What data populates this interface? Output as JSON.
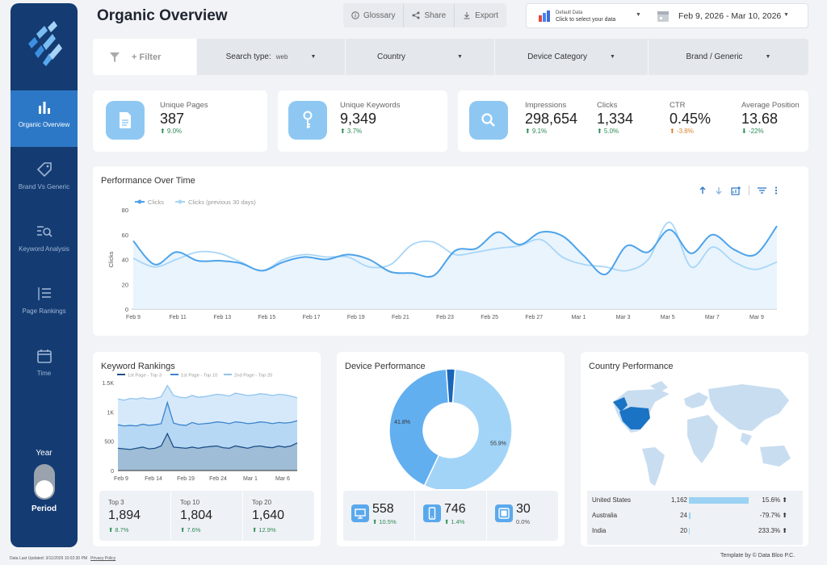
{
  "sidebar": {
    "items": [
      {
        "label": "Organic Overview",
        "icon": "bar-chart-icon"
      },
      {
        "label": "Brand Vs Generic",
        "icon": "tag-icon"
      },
      {
        "label": "Keyword Analysis",
        "icon": "search-list-icon"
      },
      {
        "label": "Page Rankings",
        "icon": "ranked-list-icon"
      },
      {
        "label": "Time",
        "icon": "calendar-icon"
      }
    ],
    "year_label": "Year",
    "period_label": "Period"
  },
  "header": {
    "title": "Organic Overview",
    "glossary": "Glossary",
    "share": "Share",
    "export": "Export",
    "data_source_name": "Default Data",
    "data_source_hint": "Click to select your data",
    "date_range": "Feb 9, 2026 - Mar 10, 2026"
  },
  "filters": {
    "add_filter": "+ Filter",
    "search_type_label": "Search type:",
    "search_type_value": "web",
    "country": "Country",
    "device_category": "Device Category",
    "brand_generic": "Brand / Generic"
  },
  "kpis": {
    "unique_pages": {
      "label": "Unique Pages",
      "value": "387",
      "delta": "⬆ 9.0%"
    },
    "unique_keywords": {
      "label": "Unique Keywords",
      "value": "9,349",
      "delta": "⬆ 3.7%"
    },
    "impressions": {
      "label": "Impressions",
      "value": "298,654",
      "delta": "⬆ 9.1%"
    },
    "clicks": {
      "label": "Clicks",
      "value": "1,334",
      "delta": "⬆ 5.0%"
    },
    "ctr": {
      "label": "CTR",
      "value": "0.45%",
      "delta": "⬆ -3.8%"
    },
    "avg_position": {
      "label": "Average Position",
      "value": "13.68",
      "delta": "⬇ -22%"
    }
  },
  "performance": {
    "title": "Performance Over Time"
  },
  "keyword_rankings": {
    "title": "Keyword Rankings",
    "top3_label": "Top 3",
    "top3_value": "1,894",
    "top3_delta": "⬆ 8.7%",
    "top10_label": "Top 10",
    "top10_value": "1,804",
    "top10_delta": "⬆ 7.6%",
    "top20_label": "Top 20",
    "top20_value": "1,640",
    "top20_delta": "⬆ 12.9%"
  },
  "device": {
    "title": "Device Performance",
    "desktop_value": "558",
    "desktop_delta": "⬆ 10.5%",
    "mobile_value": "746",
    "mobile_delta": "⬆ 1.4%",
    "tablet_value": "30",
    "tablet_delta": "0.0%"
  },
  "country": {
    "title": "Country Performance",
    "rows": [
      {
        "name": "United States",
        "value": "1,162",
        "change": "15.6% ⬆",
        "share": 0.93
      },
      {
        "name": "Australia",
        "value": "24",
        "change": "-79.7% ⬆",
        "share": 0.02
      },
      {
        "name": "India",
        "value": "20",
        "change": "233.3% ⬆",
        "share": 0.016
      }
    ]
  },
  "footer": {
    "updated": "Data Last Updated: 3/11/2026 10:02:30 PM",
    "privacy": "Privacy Policy",
    "credit": "Template by © Data Bloo P.C."
  },
  "colors": {
    "sidebar": "#143c73",
    "active_nav": "#2d78c6",
    "accent": "#2d8ce0",
    "light_accent": "#9bd2f3",
    "positive": "#2e8b57",
    "negative": "#d9822b"
  },
  "chart_data": [
    {
      "type": "line",
      "title": "Performance Over Time",
      "xlabel": "",
      "ylabel": "Clicks",
      "ylim": [
        0,
        80
      ],
      "y_ticks": [
        0,
        20,
        40,
        60,
        80
      ],
      "x_ticks": [
        "Feb 9",
        "Feb 11",
        "Feb 13",
        "Feb 15",
        "Feb 17",
        "Feb 19",
        "Feb 21",
        "Feb 23",
        "Feb 25",
        "Feb 27",
        "Mar 1",
        "Mar 3",
        "Mar 5",
        "Mar 7",
        "Mar 9"
      ],
      "legend": "top-left",
      "series": [
        {
          "name": "Clicks",
          "values": [
            55,
            36,
            46,
            39,
            39,
            37,
            31,
            38,
            42,
            40,
            44,
            40,
            30,
            29,
            27,
            47,
            49,
            62,
            52,
            62,
            59,
            43,
            28,
            51,
            46,
            64,
            45,
            60,
            48,
            44,
            67
          ]
        },
        {
          "name": "Clicks (previous 30 days)",
          "values": [
            41,
            34,
            40,
            46,
            45,
            38,
            31,
            40,
            44,
            42,
            42,
            34,
            36,
            52,
            54,
            44,
            46,
            49,
            51,
            56,
            42,
            36,
            34,
            31,
            40,
            70,
            34,
            50,
            38,
            32,
            38
          ]
        }
      ]
    },
    {
      "type": "area",
      "title": "Keyword Rankings",
      "ylim": [
        0,
        1500
      ],
      "y_ticks": [
        "0",
        "500",
        "1K",
        "1.5K"
      ],
      "x_ticks": [
        "Feb 9",
        "Feb 14",
        "Feb 19",
        "Feb 24",
        "Mar 1",
        "Mar 6"
      ],
      "legend": "top",
      "series": [
        {
          "name": "1st Page - Top 3",
          "values": [
            380,
            370,
            360,
            380,
            400,
            370,
            380,
            420,
            630,
            400,
            390,
            380,
            400,
            380,
            400,
            410,
            420,
            390,
            380,
            420,
            400,
            380,
            410,
            420,
            400,
            390,
            420,
            400,
            420,
            470
          ]
        },
        {
          "name": "1st Page - Top 10",
          "values": [
            780,
            760,
            770,
            760,
            790,
            770,
            780,
            800,
            1160,
            810,
            780,
            770,
            820,
            790,
            800,
            810,
            830,
            820,
            800,
            830,
            820,
            800,
            810,
            830,
            820,
            800,
            820,
            810,
            820,
            850
          ]
        },
        {
          "name": "2nd Page - Top 20",
          "values": [
            1220,
            1200,
            1230,
            1220,
            1240,
            1220,
            1230,
            1260,
            1450,
            1280,
            1250,
            1240,
            1280,
            1250,
            1260,
            1280,
            1300,
            1290,
            1270,
            1320,
            1300,
            1280,
            1290,
            1310,
            1300,
            1280,
            1300,
            1290,
            1270,
            1240
          ]
        }
      ]
    },
    {
      "type": "pie",
      "title": "Device Performance",
      "labels": [
        "Mobile",
        "Desktop",
        "Tablet"
      ],
      "values": [
        55.9,
        41.8,
        2.3
      ],
      "percent_labels": [
        "55.9%",
        "41.8%",
        ""
      ]
    }
  ]
}
